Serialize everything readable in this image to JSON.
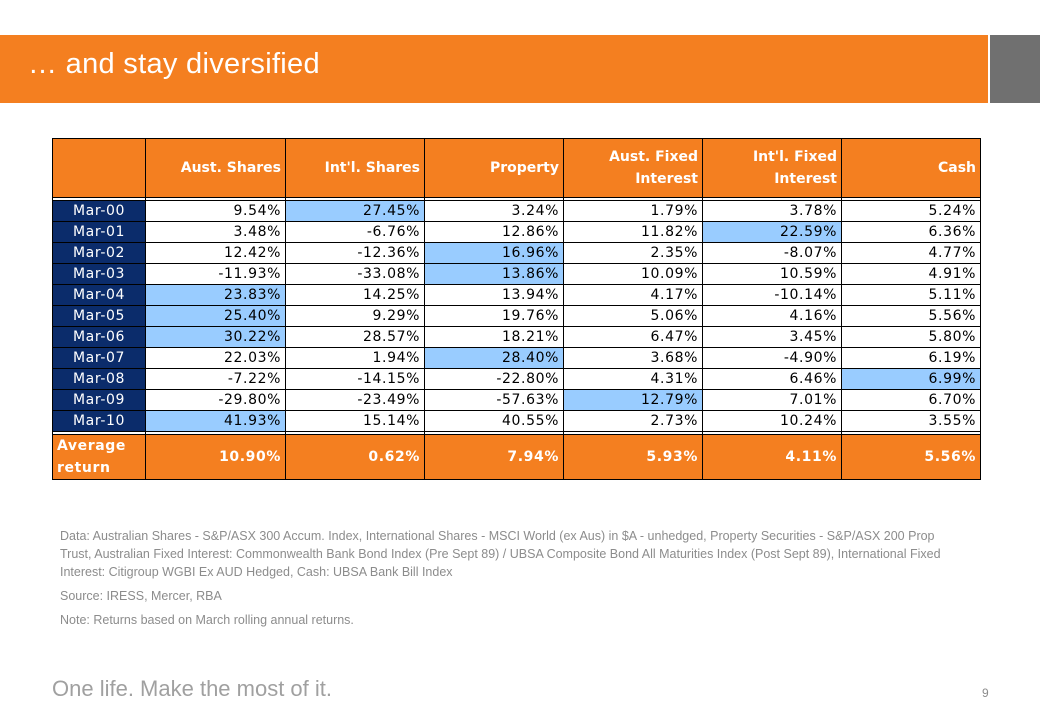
{
  "header": {
    "title": "… and stay diversified"
  },
  "table": {
    "columns": [
      "Aust. Shares",
      "Int'l. Shares",
      "Property",
      "Aust. Fixed Interest",
      "Int'l. Fixed Interest",
      "Cash"
    ],
    "column_lines": [
      [
        "Aust. Shares"
      ],
      [
        "Int'l. Shares"
      ],
      [
        "Property"
      ],
      [
        "Aust. Fixed",
        "Interest"
      ],
      [
        "Int'l. Fixed",
        "Interest"
      ],
      [
        "Cash"
      ]
    ],
    "rows": [
      {
        "period": "Mar-00",
        "values": [
          "9.54%",
          "27.45%",
          "3.24%",
          "1.79%",
          "3.78%",
          "5.24%"
        ],
        "highlight": 1
      },
      {
        "period": "Mar-01",
        "values": [
          "3.48%",
          "-6.76%",
          "12.86%",
          "11.82%",
          "22.59%",
          "6.36%"
        ],
        "highlight": 4
      },
      {
        "period": "Mar-02",
        "values": [
          "12.42%",
          "-12.36%",
          "16.96%",
          "2.35%",
          "-8.07%",
          "4.77%"
        ],
        "highlight": 2
      },
      {
        "period": "Mar-03",
        "values": [
          "-11.93%",
          "-33.08%",
          "13.86%",
          "10.09%",
          "10.59%",
          "4.91%"
        ],
        "highlight": 2
      },
      {
        "period": "Mar-04",
        "values": [
          "23.83%",
          "14.25%",
          "13.94%",
          "4.17%",
          "-10.14%",
          "5.11%"
        ],
        "highlight": 0
      },
      {
        "period": "Mar-05",
        "values": [
          "25.40%",
          "9.29%",
          "19.76%",
          "5.06%",
          "4.16%",
          "5.56%"
        ],
        "highlight": 0
      },
      {
        "period": "Mar-06",
        "values": [
          "30.22%",
          "28.57%",
          "18.21%",
          "6.47%",
          "3.45%",
          "5.80%"
        ],
        "highlight": 0
      },
      {
        "period": "Mar-07",
        "values": [
          "22.03%",
          "1.94%",
          "28.40%",
          "3.68%",
          "-4.90%",
          "6.19%"
        ],
        "highlight": 2
      },
      {
        "period": "Mar-08",
        "values": [
          "-7.22%",
          "-14.15%",
          "-22.80%",
          "4.31%",
          "6.46%",
          "6.99%"
        ],
        "highlight": 5
      },
      {
        "period": "Mar-09",
        "values": [
          "-29.80%",
          "-23.49%",
          "-57.63%",
          "12.79%",
          "7.01%",
          "6.70%"
        ],
        "highlight": 3
      },
      {
        "period": "Mar-10",
        "values": [
          "41.93%",
          "15.14%",
          "40.55%",
          "2.73%",
          "10.24%",
          "3.55%"
        ],
        "highlight": 0
      }
    ],
    "average": {
      "label_line1": "Average",
      "label_line2": "return",
      "values": [
        "10.90%",
        "0.62%",
        "7.94%",
        "5.93%",
        "4.11%",
        "5.56%"
      ]
    }
  },
  "notes": {
    "data_source": "Data: Australian Shares - S&P/ASX 300 Accum. Index, International Shares - MSCI World (ex Aus) in $A - unhedged, Property Securities - S&P/ASX 200 Prop Trust, Australian Fixed Interest: Commonwealth Bank Bond Index (Pre Sept 89) / UBSA Composite Bond All Maturities Index (Post Sept 89), International Fixed Interest: Citigroup WGBI Ex AUD Hedged, Cash: UBSA Bank Bill Index",
    "source": "Source: IRESS, Mercer, RBA",
    "note": "Note: Returns based on March rolling annual returns."
  },
  "footer": {
    "slogan": "One life. Make the most of it.",
    "page_number": "9"
  },
  "colors": {
    "accent": "#F47F20",
    "period_fill": "#0B2C6B",
    "highlight": "#99CCFF",
    "side_band": "#707070"
  }
}
